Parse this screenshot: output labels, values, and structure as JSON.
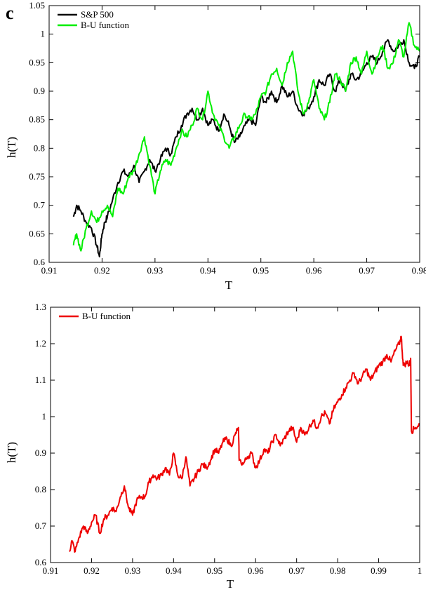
{
  "panel_label": "c",
  "colors": {
    "sp500": "#000000",
    "bu_green": "#00ee00",
    "bu_red": "#ee0000",
    "axis": "#000000",
    "background": "#ffffff"
  },
  "chart_data": [
    {
      "type": "line",
      "xlabel": "T",
      "ylabel": "h(T)",
      "xlim": [
        0.91,
        0.98
      ],
      "ylim": [
        0.6,
        1.05
      ],
      "x_ticks": [
        "0.91",
        "0.92",
        "0.93",
        "0.94",
        "0.95",
        "0.96",
        "0.97",
        "0.98"
      ],
      "y_ticks": [
        "0.6",
        "0.65",
        "0.7",
        "0.75",
        "0.8",
        "0.85",
        "0.9",
        "0.95",
        "1",
        "1.05"
      ],
      "legend_position": "top-left",
      "grid": false,
      "series": [
        {
          "name": "S&P 500",
          "color": "#000000",
          "x": [
            0.9146,
            0.9152,
            0.916,
            0.917,
            0.918,
            0.919,
            0.9195,
            0.92,
            0.9205,
            0.921,
            0.922,
            0.923,
            0.924,
            0.925,
            0.926,
            0.927,
            0.928,
            0.929,
            0.93,
            0.931,
            0.932,
            0.933,
            0.934,
            0.935,
            0.936,
            0.937,
            0.938,
            0.939,
            0.94,
            0.941,
            0.942,
            0.943,
            0.944,
            0.945,
            0.946,
            0.947,
            0.948,
            0.949,
            0.95,
            0.951,
            0.952,
            0.953,
            0.954,
            0.955,
            0.956,
            0.957,
            0.958,
            0.959,
            0.96,
            0.961,
            0.962,
            0.963,
            0.964,
            0.965,
            0.966,
            0.967,
            0.968,
            0.969,
            0.97,
            0.971,
            0.972,
            0.973,
            0.974,
            0.975,
            0.976,
            0.977,
            0.978,
            0.979,
            0.98
          ],
          "values": [
            0.68,
            0.7,
            0.69,
            0.67,
            0.66,
            0.63,
            0.61,
            0.65,
            0.67,
            0.68,
            0.71,
            0.74,
            0.76,
            0.75,
            0.77,
            0.74,
            0.76,
            0.78,
            0.76,
            0.78,
            0.8,
            0.79,
            0.82,
            0.84,
            0.86,
            0.87,
            0.85,
            0.87,
            0.84,
            0.85,
            0.83,
            0.86,
            0.84,
            0.81,
            0.82,
            0.84,
            0.85,
            0.84,
            0.89,
            0.88,
            0.9,
            0.88,
            0.91,
            0.89,
            0.9,
            0.87,
            0.86,
            0.87,
            0.89,
            0.92,
            0.91,
            0.93,
            0.9,
            0.92,
            0.9,
            0.93,
            0.92,
            0.93,
            0.95,
            0.96,
            0.95,
            0.97,
            0.99,
            0.97,
            0.98,
            0.99,
            0.95,
            0.94,
            0.96
          ]
        },
        {
          "name": "B-U function",
          "color": "#00ee00",
          "x": [
            0.9146,
            0.9152,
            0.916,
            0.917,
            0.918,
            0.919,
            0.92,
            0.921,
            0.922,
            0.923,
            0.924,
            0.925,
            0.926,
            0.927,
            0.928,
            0.929,
            0.93,
            0.931,
            0.932,
            0.933,
            0.934,
            0.935,
            0.936,
            0.937,
            0.938,
            0.939,
            0.94,
            0.941,
            0.942,
            0.943,
            0.944,
            0.945,
            0.946,
            0.947,
            0.948,
            0.949,
            0.95,
            0.951,
            0.952,
            0.953,
            0.954,
            0.955,
            0.956,
            0.957,
            0.958,
            0.959,
            0.96,
            0.961,
            0.962,
            0.963,
            0.964,
            0.965,
            0.966,
            0.967,
            0.968,
            0.969,
            0.97,
            0.971,
            0.972,
            0.973,
            0.974,
            0.975,
            0.976,
            0.977,
            0.978,
            0.979,
            0.98
          ],
          "values": [
            0.63,
            0.65,
            0.62,
            0.66,
            0.69,
            0.67,
            0.69,
            0.7,
            0.68,
            0.73,
            0.72,
            0.75,
            0.76,
            0.79,
            0.82,
            0.77,
            0.72,
            0.76,
            0.78,
            0.77,
            0.8,
            0.83,
            0.82,
            0.84,
            0.87,
            0.85,
            0.9,
            0.86,
            0.84,
            0.82,
            0.8,
            0.82,
            0.84,
            0.86,
            0.85,
            0.86,
            0.89,
            0.9,
            0.93,
            0.94,
            0.91,
            0.95,
            0.97,
            0.9,
            0.86,
            0.88,
            0.92,
            0.87,
            0.85,
            0.88,
            0.93,
            0.92,
            0.9,
            0.95,
            0.96,
            0.93,
            0.97,
            0.93,
            0.96,
            0.98,
            0.94,
            0.95,
            0.99,
            0.96,
            1.02,
            0.98,
            0.97
          ]
        }
      ]
    },
    {
      "type": "line",
      "xlabel": "T",
      "ylabel": "h(T)",
      "xlim": [
        0.91,
        1.0
      ],
      "ylim": [
        0.6,
        1.3
      ],
      "x_ticks": [
        "0.91",
        "0.92",
        "0.93",
        "0.94",
        "0.95",
        "0.96",
        "0.97",
        "0.98",
        "0.99",
        "1"
      ],
      "y_ticks": [
        "0.6",
        "0.7",
        "0.8",
        "0.9",
        "1",
        "1.1",
        "1.2",
        "1.3"
      ],
      "legend_position": "top-left",
      "grid": false,
      "series": [
        {
          "name": "B-U function",
          "color": "#ee0000",
          "x": [
            0.9146,
            0.9152,
            0.916,
            0.917,
            0.918,
            0.919,
            0.92,
            0.921,
            0.922,
            0.923,
            0.924,
            0.925,
            0.926,
            0.927,
            0.928,
            0.929,
            0.93,
            0.931,
            0.932,
            0.933,
            0.934,
            0.935,
            0.936,
            0.937,
            0.938,
            0.939,
            0.94,
            0.941,
            0.942,
            0.943,
            0.944,
            0.945,
            0.946,
            0.947,
            0.948,
            0.949,
            0.95,
            0.951,
            0.952,
            0.953,
            0.954,
            0.955,
            0.9558,
            0.956,
            0.957,
            0.958,
            0.959,
            0.96,
            0.961,
            0.962,
            0.963,
            0.964,
            0.965,
            0.966,
            0.967,
            0.968,
            0.969,
            0.97,
            0.971,
            0.972,
            0.973,
            0.974,
            0.975,
            0.976,
            0.977,
            0.978,
            0.979,
            0.98,
            0.981,
            0.982,
            0.983,
            0.984,
            0.985,
            0.986,
            0.987,
            0.988,
            0.989,
            0.99,
            0.991,
            0.992,
            0.993,
            0.994,
            0.995,
            0.9955,
            0.996,
            0.997,
            0.9975,
            0.9978,
            0.998,
            0.999,
            1.0
          ],
          "values": [
            0.63,
            0.66,
            0.63,
            0.67,
            0.7,
            0.68,
            0.71,
            0.73,
            0.68,
            0.72,
            0.73,
            0.75,
            0.74,
            0.78,
            0.81,
            0.75,
            0.73,
            0.77,
            0.78,
            0.78,
            0.82,
            0.84,
            0.83,
            0.84,
            0.86,
            0.84,
            0.9,
            0.84,
            0.83,
            0.89,
            0.81,
            0.83,
            0.85,
            0.87,
            0.86,
            0.88,
            0.91,
            0.9,
            0.93,
            0.94,
            0.92,
            0.95,
            0.97,
            0.88,
            0.87,
            0.89,
            0.9,
            0.86,
            0.88,
            0.91,
            0.9,
            0.93,
            0.95,
            0.92,
            0.94,
            0.96,
            0.97,
            0.93,
            0.97,
            0.95,
            0.97,
            0.99,
            0.97,
            1.0,
            1.01,
            0.98,
            1.02,
            1.04,
            1.06,
            1.08,
            1.1,
            1.12,
            1.09,
            1.11,
            1.13,
            1.1,
            1.12,
            1.14,
            1.15,
            1.17,
            1.15,
            1.18,
            1.2,
            1.22,
            1.14,
            1.15,
            1.14,
            1.16,
            0.96,
            0.97,
            0.98
          ]
        }
      ]
    }
  ]
}
